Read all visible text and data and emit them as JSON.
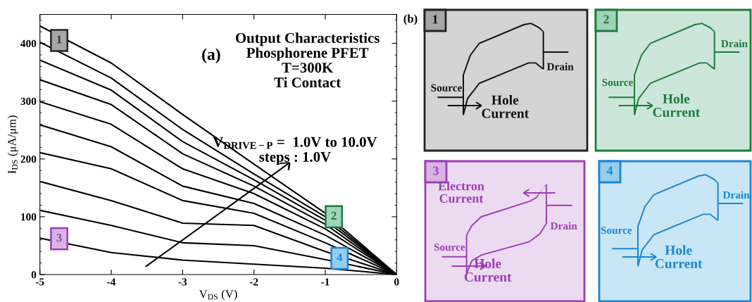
{
  "chart_data": [
    {
      "type": "line",
      "xlabel": "V$_{DS}$ (V)",
      "ylabel": "I$_{DS}$ (μA/μm)",
      "x": [
        -5,
        -4,
        -3,
        -2,
        -1,
        0
      ],
      "xlim": [
        -5,
        0
      ],
      "ylim": [
        0,
        450
      ],
      "xticks": [
        -5,
        -4,
        -3,
        -2,
        -1,
        0
      ],
      "yticks": [
        0,
        100,
        200,
        300,
        400
      ],
      "grid": false,
      "legend": false,
      "marker": "none",
      "line_style": "solid",
      "series": [
        {
          "color": "#000000",
          "values": [
            430,
            366,
            277,
            191,
            106,
            0
          ]
        },
        {
          "color": "#000000",
          "values": [
            402,
            340,
            251,
            174,
            100,
            0
          ]
        },
        {
          "color": "#000000",
          "values": [
            371,
            319,
            230,
            164,
            94,
            0
          ]
        },
        {
          "color": "#000000",
          "values": [
            337,
            294,
            209,
            153,
            87,
            0
          ]
        },
        {
          "color": "#000000",
          "values": [
            299,
            260,
            183,
            140,
            79,
            0
          ]
        },
        {
          "color": "#000000",
          "values": [
            259,
            221,
            153,
            123,
            68,
            0
          ]
        },
        {
          "color": "#000000",
          "values": [
            211,
            183,
            128,
            106,
            55,
            0
          ]
        },
        {
          "color": "#000000",
          "values": [
            161,
            128,
            89,
            85,
            40,
            0
          ]
        },
        {
          "color": "#000000",
          "values": [
            111,
            85,
            55,
            50,
            26,
            0
          ]
        },
        {
          "color": "#000000",
          "values": [
            63,
            38,
            25,
            18,
            11,
            0
          ]
        }
      ],
      "annotations": [
        "(a)",
        "Output Characteristics\nPhosphorene PFET\nT=300K\nTi Contact",
        "V$_{DRIVE−P}$ =  1.0V to 10.0V\nsteps : 1.0V",
        {
          "text": "1",
          "x": -4.73,
          "y": 405
        },
        {
          "text": "2",
          "x": -0.88,
          "y": 100
        },
        {
          "text": "3",
          "x": -4.73,
          "y": 62
        },
        {
          "text": "4",
          "x": -0.8,
          "y": 28
        }
      ]
    },
    {
      "type": "other",
      "title": "(b)",
      "annotations": [
        "1",
        "Source",
        "Drain",
        "Hole\nCurrent",
        "2",
        "Source",
        "Drain",
        "Hole\nCurrent",
        "3",
        "Electron\nCurrent",
        "Source",
        "Drain",
        "Hole\nCurrent",
        "4",
        "Source",
        "Drain",
        "Hole\nCurrent"
      ]
    }
  ]
}
